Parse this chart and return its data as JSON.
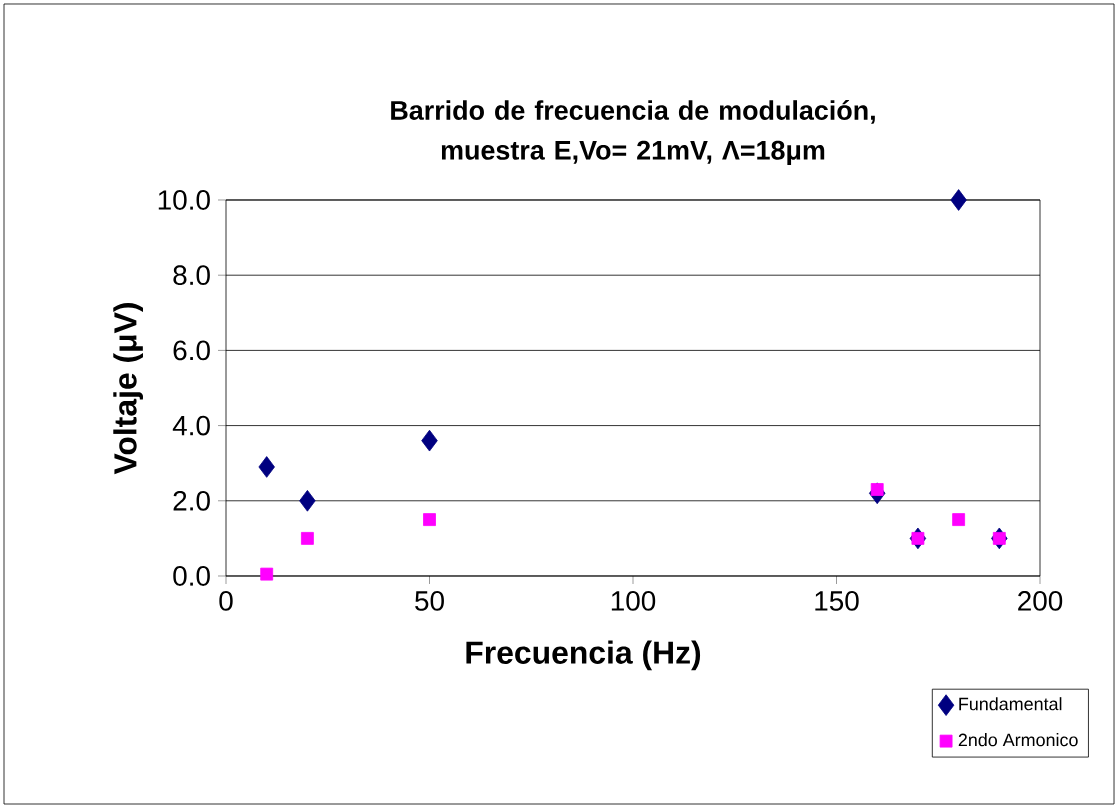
{
  "chart_data": {
    "type": "scatter",
    "title": "Barrido de frecuencia de modulación, muestra E,Vo= 21mV, Λ=18μm",
    "xlabel": "Frecuencia (Hz)",
    "ylabel": "Voltaje (μV)",
    "xlim": [
      0,
      200
    ],
    "xticks": [
      0,
      50,
      100,
      150,
      200
    ],
    "ylim": [
      0,
      10
    ],
    "yticks": [
      {
        "value": 0,
        "label": "0.0"
      },
      {
        "value": 2,
        "label": "2.0"
      },
      {
        "value": 4,
        "label": "4.0"
      },
      {
        "value": 6,
        "label": "6.0"
      },
      {
        "value": 8,
        "label": "8.0"
      },
      {
        "value": 10,
        "label": "10.0"
      }
    ],
    "grid": "y",
    "legend": "bottom right",
    "series": [
      {
        "name": "Fundamental",
        "color": "#000080",
        "marker": "diamond",
        "x": [
          10,
          20,
          50,
          160,
          170,
          180,
          190
        ],
        "values": [
          2.9,
          2.0,
          3.6,
          2.2,
          1.0,
          10.0,
          1.0
        ]
      },
      {
        "name": "2ndo Armonico",
        "color": "#ff00ff",
        "marker": "square",
        "x": [
          10,
          20,
          50,
          160,
          170,
          180,
          190
        ],
        "values": [
          0.05,
          1.0,
          1.5,
          2.3,
          1.0,
          1.5,
          1.0
        ]
      }
    ]
  }
}
